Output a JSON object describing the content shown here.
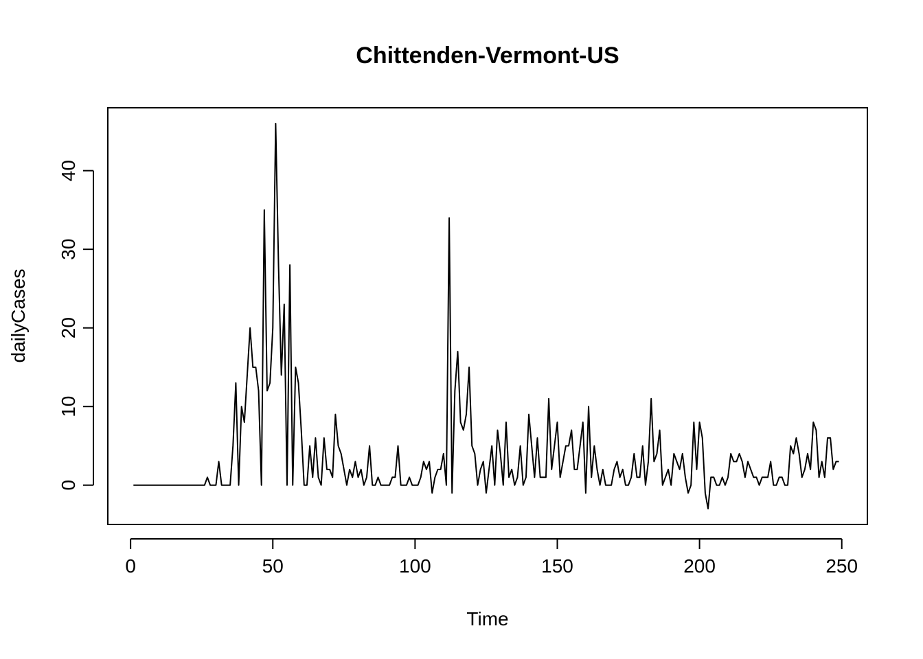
{
  "chart_data": {
    "type": "line",
    "title": "Chittenden-Vermont-US",
    "xlabel": "Time",
    "ylabel": "dailyCases",
    "xlim": [
      -8,
      259
    ],
    "ylim": [
      -5,
      48
    ],
    "xticks": [
      0,
      50,
      100,
      150,
      200,
      250
    ],
    "yticks": [
      0,
      10,
      20,
      30,
      40
    ],
    "xtick_labels": [
      "0",
      "50",
      "100",
      "150",
      "200",
      "250"
    ],
    "ytick_labels": [
      "0",
      "10",
      "20",
      "30",
      "40"
    ],
    "grid": false,
    "line_color": "#000000",
    "series": [
      {
        "x_start": 1,
        "values": [
          0,
          0,
          0,
          0,
          0,
          0,
          0,
          0,
          0,
          0,
          0,
          0,
          0,
          0,
          0,
          0,
          0,
          0,
          0,
          0,
          0,
          0,
          0,
          0,
          0,
          0,
          1,
          0,
          0,
          0,
          3,
          0,
          0,
          0,
          0,
          5,
          13,
          0,
          10,
          8,
          14,
          20,
          15,
          15,
          12,
          0,
          35,
          12,
          13,
          20,
          46,
          28,
          14,
          23,
          0,
          28,
          0,
          15,
          13,
          7,
          0,
          0,
          5,
          1,
          6,
          1,
          0,
          6,
          2,
          2,
          1,
          9,
          5,
          4,
          2,
          0,
          2,
          1,
          3,
          1,
          2,
          0,
          1,
          5,
          0,
          0,
          1,
          0,
          0,
          0,
          0,
          1,
          1,
          5,
          0,
          0,
          0,
          1,
          0,
          0,
          0,
          1,
          3,
          2,
          3,
          -1,
          1,
          2,
          2,
          4,
          0,
          34,
          -1,
          12,
          17,
          8,
          7,
          9,
          15,
          5,
          4,
          0,
          2,
          3,
          -1,
          2,
          5,
          0,
          7,
          4,
          0,
          8,
          1,
          2,
          0,
          1,
          5,
          0,
          1,
          9,
          5,
          1,
          6,
          1,
          1,
          1,
          11,
          2,
          5,
          8,
          1,
          3,
          5,
          5,
          7,
          2,
          2,
          5,
          8,
          -1,
          10,
          1,
          5,
          2,
          0,
          2,
          0,
          0,
          0,
          2,
          3,
          1,
          2,
          0,
          0,
          1,
          4,
          1,
          1,
          5,
          0,
          3,
          11,
          3,
          4,
          7,
          0,
          1,
          2,
          0,
          4,
          3,
          2,
          4,
          1,
          -1,
          0,
          8,
          2,
          8,
          6,
          -1,
          -3,
          1,
          1,
          0,
          0,
          1,
          0,
          1,
          4,
          3,
          3,
          4,
          3,
          1,
          3,
          2,
          1,
          1,
          0,
          1,
          1,
          1,
          3,
          0,
          0,
          1,
          1,
          0,
          0,
          5,
          4,
          6,
          4,
          1,
          2,
          4,
          2,
          8,
          7,
          1,
          3,
          1,
          6,
          6,
          2,
          3,
          3
        ]
      }
    ]
  }
}
